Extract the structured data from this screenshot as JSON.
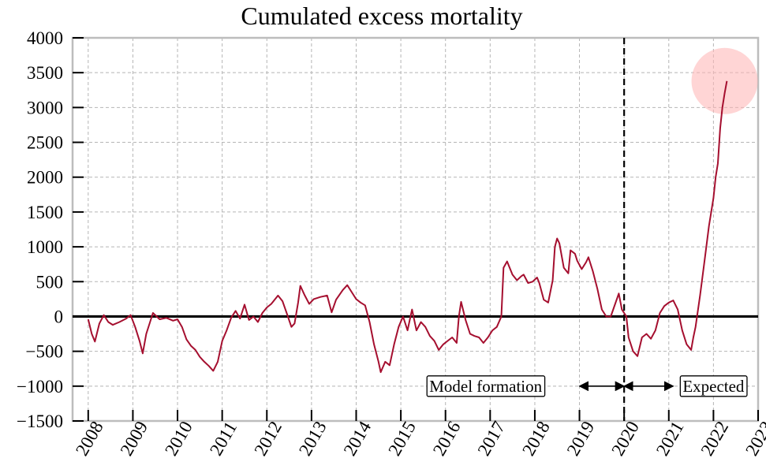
{
  "chart_data": {
    "type": "line",
    "title": "Cumulated excess mortality",
    "xlabel": "",
    "ylabel": "",
    "xlim": [
      2007.65,
      2023.0
    ],
    "ylim": [
      -1500,
      4000
    ],
    "x_ticks": [
      2008,
      2009,
      2010,
      2011,
      2012,
      2013,
      2014,
      2015,
      2016,
      2017,
      2018,
      2019,
      2020,
      2021,
      2022,
      2023
    ],
    "y_ticks": [
      4000,
      3500,
      3000,
      2500,
      2000,
      1500,
      1000,
      500,
      0,
      -500,
      -1000,
      -1500
    ],
    "grid": true,
    "reference_lines": [
      {
        "orientation": "horizontal",
        "value": 0,
        "style": "solid",
        "color": "#000000"
      },
      {
        "orientation": "vertical",
        "value": 2020,
        "style": "dashed",
        "color": "#000000"
      }
    ],
    "annotations": [
      {
        "text": "Model formation",
        "x": 2016.9,
        "y": -1000,
        "arrow_from": 2019.0,
        "arrow_to": 2020.0
      },
      {
        "text": "Expected",
        "x": 2022.0,
        "y": -1000,
        "arrow_from": 2020.0,
        "arrow_to": 2021.1
      }
    ],
    "highlight": {
      "x": 2022.25,
      "y": 3380,
      "color": "#ffb3b3"
    },
    "series": [
      {
        "color": "#a50f2f",
        "points": [
          [
            2008.0,
            -40
          ],
          [
            2008.08,
            -250
          ],
          [
            2008.15,
            -360
          ],
          [
            2008.25,
            -100
          ],
          [
            2008.35,
            20
          ],
          [
            2008.45,
            -80
          ],
          [
            2008.55,
            -120
          ],
          [
            2008.7,
            -80
          ],
          [
            2008.85,
            -30
          ],
          [
            2008.95,
            20
          ],
          [
            2009.05,
            -150
          ],
          [
            2009.15,
            -350
          ],
          [
            2009.22,
            -530
          ],
          [
            2009.3,
            -250
          ],
          [
            2009.45,
            50
          ],
          [
            2009.6,
            -40
          ],
          [
            2009.75,
            -20
          ],
          [
            2009.9,
            -60
          ],
          [
            2010.0,
            -40
          ],
          [
            2010.1,
            -150
          ],
          [
            2010.2,
            -330
          ],
          [
            2010.3,
            -420
          ],
          [
            2010.4,
            -480
          ],
          [
            2010.5,
            -580
          ],
          [
            2010.6,
            -650
          ],
          [
            2010.7,
            -710
          ],
          [
            2010.8,
            -780
          ],
          [
            2010.9,
            -650
          ],
          [
            2011.0,
            -350
          ],
          [
            2011.1,
            -200
          ],
          [
            2011.2,
            -20
          ],
          [
            2011.3,
            80
          ],
          [
            2011.4,
            -30
          ],
          [
            2011.5,
            170
          ],
          [
            2011.6,
            -50
          ],
          [
            2011.7,
            0
          ],
          [
            2011.8,
            -80
          ],
          [
            2011.9,
            50
          ],
          [
            2012.0,
            130
          ],
          [
            2012.1,
            180
          ],
          [
            2012.25,
            300
          ],
          [
            2012.35,
            220
          ],
          [
            2012.45,
            40
          ],
          [
            2012.55,
            -150
          ],
          [
            2012.62,
            -100
          ],
          [
            2012.7,
            200
          ],
          [
            2012.75,
            440
          ],
          [
            2012.85,
            300
          ],
          [
            2012.95,
            180
          ],
          [
            2013.05,
            250
          ],
          [
            2013.2,
            280
          ],
          [
            2013.35,
            300
          ],
          [
            2013.45,
            60
          ],
          [
            2013.55,
            240
          ],
          [
            2013.7,
            380
          ],
          [
            2013.8,
            450
          ],
          [
            2013.9,
            350
          ],
          [
            2014.0,
            250
          ],
          [
            2014.1,
            200
          ],
          [
            2014.2,
            160
          ],
          [
            2014.3,
            -80
          ],
          [
            2014.4,
            -400
          ],
          [
            2014.5,
            -650
          ],
          [
            2014.55,
            -800
          ],
          [
            2014.65,
            -650
          ],
          [
            2014.75,
            -700
          ],
          [
            2014.85,
            -400
          ],
          [
            2014.95,
            -150
          ],
          [
            2015.05,
            0
          ],
          [
            2015.15,
            -200
          ],
          [
            2015.25,
            100
          ],
          [
            2015.35,
            -200
          ],
          [
            2015.45,
            -80
          ],
          [
            2015.55,
            -150
          ],
          [
            2015.65,
            -280
          ],
          [
            2015.75,
            -350
          ],
          [
            2015.85,
            -480
          ],
          [
            2015.95,
            -400
          ],
          [
            2016.05,
            -350
          ],
          [
            2016.15,
            -300
          ],
          [
            2016.25,
            -380
          ],
          [
            2016.3,
            0
          ],
          [
            2016.35,
            210
          ],
          [
            2016.45,
            -50
          ],
          [
            2016.55,
            -250
          ],
          [
            2016.65,
            -280
          ],
          [
            2016.75,
            -300
          ],
          [
            2016.85,
            -380
          ],
          [
            2016.95,
            -300
          ],
          [
            2017.05,
            -200
          ],
          [
            2017.15,
            -150
          ],
          [
            2017.25,
            0
          ],
          [
            2017.3,
            700
          ],
          [
            2017.38,
            790
          ],
          [
            2017.5,
            600
          ],
          [
            2017.6,
            520
          ],
          [
            2017.7,
            580
          ],
          [
            2017.75,
            600
          ],
          [
            2017.85,
            480
          ],
          [
            2017.95,
            500
          ],
          [
            2018.05,
            560
          ],
          [
            2018.1,
            480
          ],
          [
            2018.2,
            240
          ],
          [
            2018.3,
            200
          ],
          [
            2018.4,
            520
          ],
          [
            2018.45,
            1000
          ],
          [
            2018.5,
            1120
          ],
          [
            2018.55,
            1050
          ],
          [
            2018.65,
            700
          ],
          [
            2018.75,
            620
          ],
          [
            2018.8,
            950
          ],
          [
            2018.9,
            900
          ],
          [
            2018.95,
            800
          ],
          [
            2019.05,
            680
          ],
          [
            2019.15,
            780
          ],
          [
            2019.2,
            850
          ],
          [
            2019.3,
            650
          ],
          [
            2019.4,
            400
          ],
          [
            2019.5,
            100
          ],
          [
            2019.6,
            0
          ],
          [
            2019.7,
            0
          ],
          [
            2019.8,
            180
          ],
          [
            2019.88,
            330
          ],
          [
            2019.95,
            100
          ],
          [
            2020.05,
            0
          ],
          [
            2020.1,
            -300
          ],
          [
            2020.2,
            -500
          ],
          [
            2020.3,
            -570
          ],
          [
            2020.4,
            -300
          ],
          [
            2020.5,
            -250
          ],
          [
            2020.6,
            -320
          ],
          [
            2020.7,
            -200
          ],
          [
            2020.8,
            50
          ],
          [
            2020.9,
            150
          ],
          [
            2021.0,
            200
          ],
          [
            2021.1,
            230
          ],
          [
            2021.2,
            100
          ],
          [
            2021.3,
            -200
          ],
          [
            2021.4,
            -400
          ],
          [
            2021.5,
            -480
          ],
          [
            2021.55,
            -300
          ],
          [
            2021.6,
            -150
          ],
          [
            2021.7,
            300
          ],
          [
            2021.8,
            800
          ],
          [
            2021.9,
            1300
          ],
          [
            2022.0,
            1700
          ],
          [
            2022.05,
            2000
          ],
          [
            2022.1,
            2200
          ],
          [
            2022.15,
            2700
          ],
          [
            2022.2,
            3000
          ],
          [
            2022.25,
            3200
          ],
          [
            2022.3,
            3380
          ]
        ]
      }
    ]
  }
}
